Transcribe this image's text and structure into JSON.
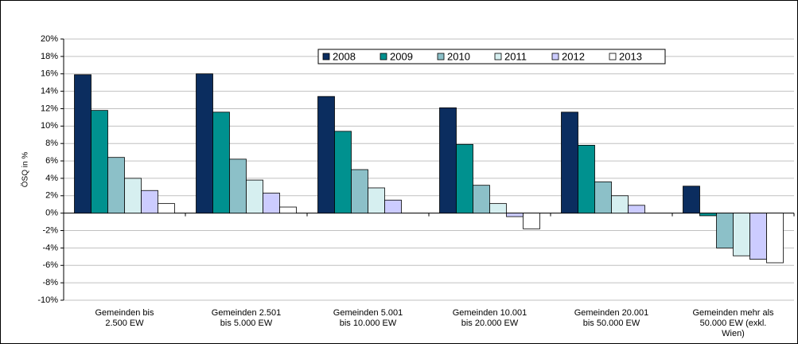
{
  "chart_data": {
    "type": "bar",
    "y_label": "ÖSQ in %",
    "categories": [
      "Gemeinden bis 2.500 EW",
      "Gemeinden 2.501 bis 5.000 EW",
      "Gemeinden 5.001 bis 10.000 EW",
      "Gemeinden 10.001 bis 20.000 EW",
      "Gemeinden 20.001 bis 50.000 EW",
      "Gemeinden mehr als 50.000 EW (exkl. Wien)"
    ],
    "series": [
      {
        "name": "2008",
        "color": "#0b2d5f",
        "values": [
          15.9,
          16.0,
          13.4,
          12.1,
          11.6,
          3.1
        ]
      },
      {
        "name": "2009",
        "color": "#00918f",
        "values": [
          11.8,
          11.6,
          9.4,
          7.9,
          7.8,
          -0.3
        ]
      },
      {
        "name": "2010",
        "color": "#8cc0c8",
        "values": [
          6.4,
          6.2,
          5.0,
          3.2,
          3.6,
          -4.0
        ]
      },
      {
        "name": "2011",
        "color": "#d6eff0",
        "values": [
          4.0,
          3.8,
          2.9,
          1.1,
          2.0,
          -4.9
        ]
      },
      {
        "name": "2012",
        "color": "#ccccff",
        "values": [
          2.6,
          2.3,
          1.5,
          -0.4,
          0.9,
          -5.3
        ]
      },
      {
        "name": "2013",
        "color": "#ffffff",
        "values": [
          1.1,
          0.7,
          null,
          -1.8,
          null,
          -5.7
        ]
      }
    ],
    "ylim": [
      -10,
      20
    ],
    "yticks": [
      {
        "value": -10,
        "label": "-10%"
      },
      {
        "value": -8,
        "label": "-8%"
      },
      {
        "value": -6,
        "label": "-6%"
      },
      {
        "value": -4,
        "label": "-4%"
      },
      {
        "value": -2,
        "label": "-2%"
      },
      {
        "value": 0,
        "label": "0%"
      },
      {
        "value": 2,
        "label": "2%"
      },
      {
        "value": 4,
        "label": "4%"
      },
      {
        "value": 6,
        "label": "6%"
      },
      {
        "value": 8,
        "label": "8%"
      },
      {
        "value": 10,
        "label": "10%"
      },
      {
        "value": 12,
        "label": "12%"
      },
      {
        "value": 14,
        "label": "14%"
      },
      {
        "value": 16,
        "label": "16%"
      },
      {
        "value": 18,
        "label": "18%"
      },
      {
        "value": 20,
        "label": "20%"
      }
    ],
    "grid": true,
    "legend": "top"
  }
}
